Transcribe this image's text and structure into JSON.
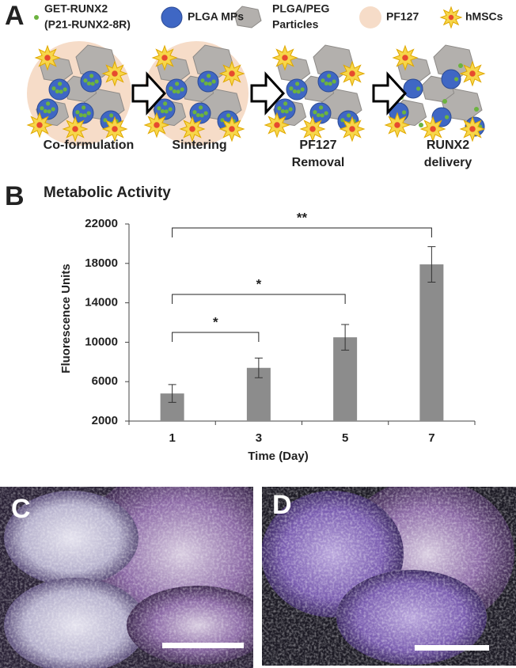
{
  "panel_a": {
    "label": "A",
    "legend": [
      {
        "lines": [
          "GET-RUNX2",
          "(P21-RUNX2-8R)"
        ]
      },
      {
        "lines": [
          "PLGA MPs"
        ]
      },
      {
        "lines": [
          "PLGA/PEG",
          "Particles"
        ]
      },
      {
        "lines": [
          "PF127"
        ]
      },
      {
        "lines": [
          "hMSCs"
        ]
      }
    ],
    "steps": [
      {
        "lines": [
          "Co-formulation"
        ]
      },
      {
        "lines": [
          "Sintering"
        ]
      },
      {
        "lines": [
          "PF127",
          "Removal"
        ]
      },
      {
        "lines": [
          "RUNX2",
          "delivery"
        ]
      }
    ]
  },
  "chart_data": {
    "type": "bar",
    "label": "B",
    "title": "Metabolic Activity",
    "categories": [
      "1",
      "3",
      "5",
      "7"
    ],
    "values": [
      4800,
      7400,
      10500,
      17900
    ],
    "errors": [
      900,
      1000,
      1300,
      1800
    ],
    "color": "#8c8c8c",
    "xlabel": "Time (Day)",
    "ylabel": "Fluorescence Units",
    "ylim": [
      2000,
      22000
    ],
    "yticks": [
      2000,
      6000,
      10000,
      14000,
      18000,
      22000
    ],
    "significance": [
      {
        "from": 0,
        "to": 1,
        "label": "*"
      },
      {
        "from": 0,
        "to": 2,
        "label": "*"
      },
      {
        "from": 0,
        "to": 3,
        "label": "**"
      }
    ]
  },
  "panel_c": {
    "label": "C"
  },
  "panel_d": {
    "label": "D"
  }
}
